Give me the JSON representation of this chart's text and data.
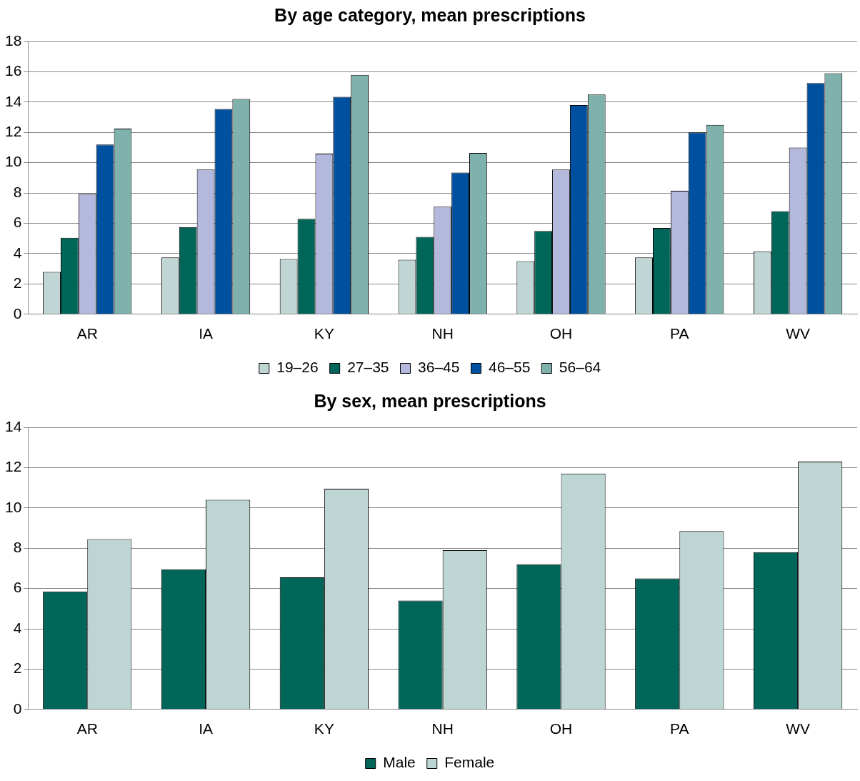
{
  "chart_data": [
    {
      "type": "bar",
      "title": "By age category, mean prescriptions",
      "categories": [
        "AR",
        "IA",
        "KY",
        "NH",
        "OH",
        "PA",
        "WV"
      ],
      "series": [
        {
          "name": "19–26",
          "color": "#bfd6d4",
          "values": [
            2.8,
            3.75,
            3.65,
            3.6,
            3.5,
            3.75,
            4.15
          ]
        },
        {
          "name": "27–35",
          "color": "#006659",
          "values": [
            5.05,
            5.75,
            6.3,
            5.1,
            5.5,
            5.7,
            6.8
          ]
        },
        {
          "name": "36–45",
          "color": "#b3b8dd",
          "values": [
            7.95,
            9.55,
            10.6,
            7.1,
            9.55,
            8.15,
            11.0
          ]
        },
        {
          "name": "46–55",
          "color": "#0050a0",
          "values": [
            11.2,
            13.55,
            14.35,
            9.35,
            13.8,
            12.0,
            15.25
          ]
        },
        {
          "name": "56–64",
          "color": "#7fb2ad",
          "values": [
            12.25,
            14.2,
            15.8,
            10.65,
            14.5,
            12.5,
            15.9
          ]
        }
      ],
      "ylim": [
        0,
        18
      ],
      "yticks": [
        0,
        2,
        4,
        6,
        8,
        10,
        12,
        14,
        16,
        18
      ],
      "grid": "y",
      "legend": "bottom"
    },
    {
      "type": "bar",
      "title": "By sex, mean prescriptions",
      "categories": [
        "AR",
        "IA",
        "KY",
        "NH",
        "OH",
        "PA",
        "WV"
      ],
      "series": [
        {
          "name": "Male",
          "color": "#006659",
          "values": [
            5.85,
            6.95,
            6.55,
            5.4,
            7.2,
            6.5,
            7.8
          ]
        },
        {
          "name": "Female",
          "color": "#bdd5d3",
          "values": [
            8.45,
            10.4,
            10.95,
            7.9,
            11.7,
            8.85,
            12.3
          ]
        }
      ],
      "ylim": [
        0,
        14
      ],
      "yticks": [
        0,
        2,
        4,
        6,
        8,
        10,
        12,
        14
      ],
      "grid": "y",
      "legend": "bottom"
    }
  ]
}
